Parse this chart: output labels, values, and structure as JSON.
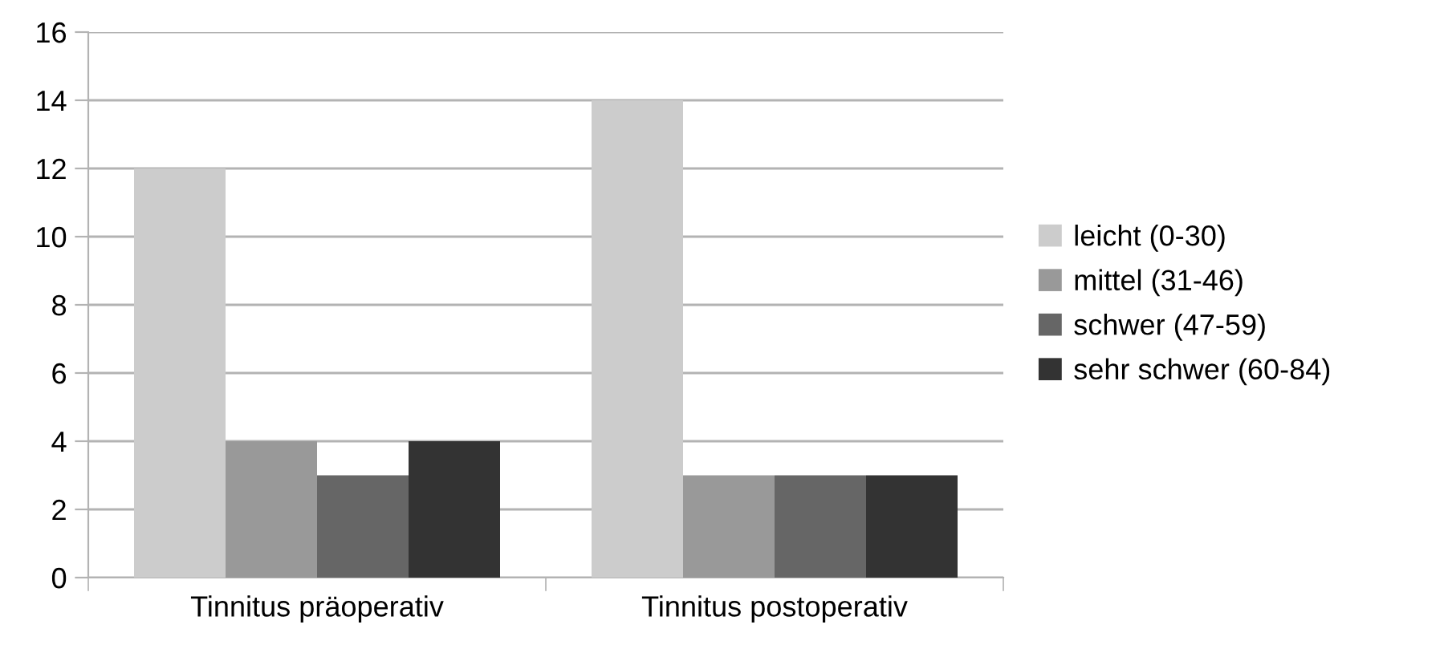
{
  "chart_data": {
    "type": "bar",
    "categories": [
      "Tinnitus präoperativ",
      "Tinnitus postoperativ"
    ],
    "series": [
      {
        "name": "leicht (0-30)",
        "color": "#cccccc",
        "values": [
          12,
          14
        ]
      },
      {
        "name": "mittel (31-46)",
        "color": "#999999",
        "values": [
          4,
          3
        ]
      },
      {
        "name": "schwer (47-59)",
        "color": "#666666",
        "values": [
          3,
          3
        ]
      },
      {
        "name": "sehr schwer (60-84)",
        "color": "#333333",
        "values": [
          4,
          3
        ]
      }
    ],
    "ylim": [
      0,
      16
    ],
    "yticks": [
      0,
      2,
      4,
      6,
      8,
      10,
      12,
      14,
      16
    ],
    "grid": "y",
    "legend": "right"
  }
}
